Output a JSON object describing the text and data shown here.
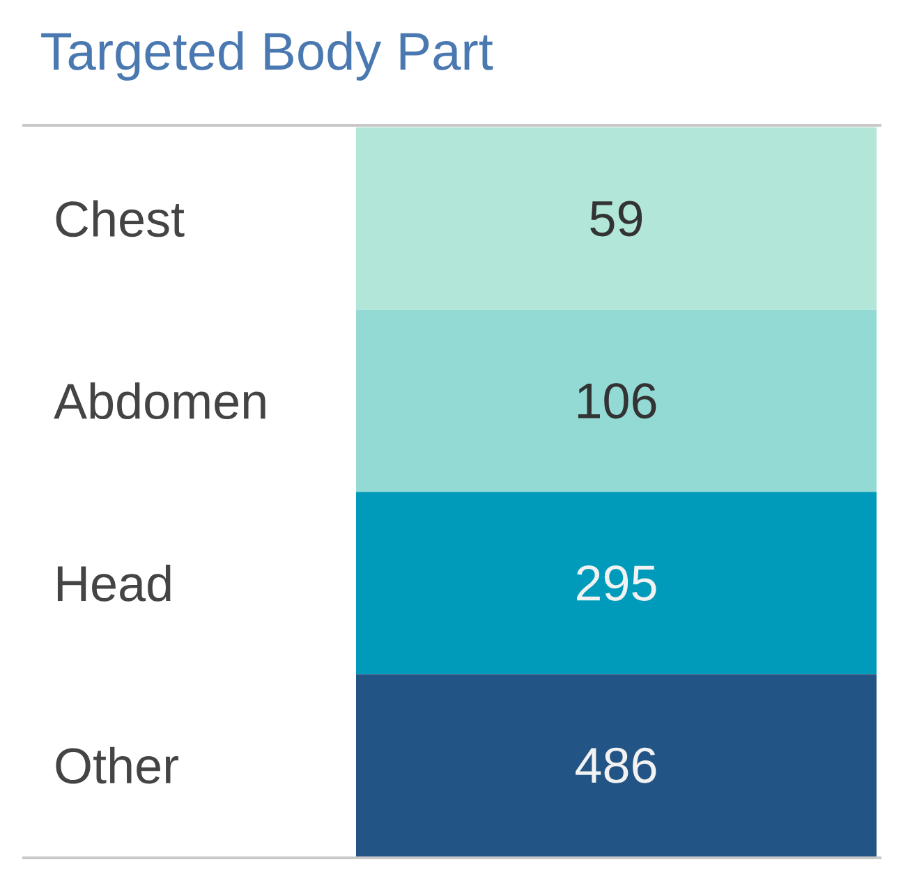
{
  "chart_data": {
    "type": "heatmap",
    "title": "Targeted Body Part",
    "categories": [
      null
    ],
    "y_categories": [
      "Chest",
      "Abdomen",
      "Head",
      "Other"
    ],
    "cells": [
      [
        59
      ],
      [
        106
      ],
      [
        295
      ],
      [
        486
      ]
    ],
    "colors": [
      "#b2e6d8",
      "#93d9d4",
      "#009bba",
      "#225585"
    ],
    "data_labels": true
  }
}
